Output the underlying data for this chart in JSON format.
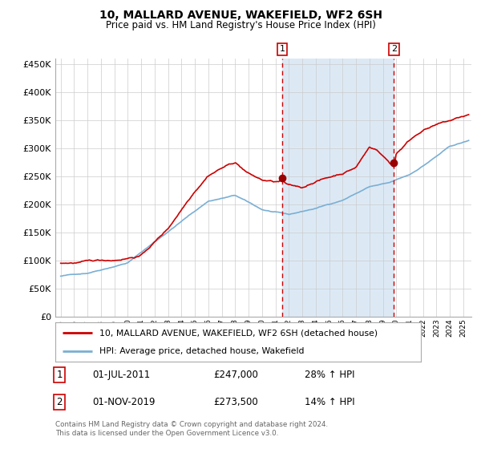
{
  "title": "10, MALLARD AVENUE, WAKEFIELD, WF2 6SH",
  "subtitle": "Price paid vs. HM Land Registry's House Price Index (HPI)",
  "ylim": [
    0,
    460000
  ],
  "yticks": [
    0,
    50000,
    100000,
    150000,
    200000,
    250000,
    300000,
    350000,
    400000,
    450000
  ],
  "xlim_start": 1994.6,
  "xlim_end": 2025.6,
  "marker1_x": 2011.5,
  "marker1_y": 247000,
  "marker1_label": "1",
  "marker1_date": "01-JUL-2011",
  "marker1_price": "£247,000",
  "marker1_hpi": "28% ↑ HPI",
  "marker2_x": 2019.83,
  "marker2_y": 273500,
  "marker2_label": "2",
  "marker2_date": "01-NOV-2019",
  "marker2_price": "£273,500",
  "marker2_hpi": "14% ↑ HPI",
  "shade_color": "#dce9f5",
  "red_line_color": "#cc0000",
  "blue_line_color": "#7aafd4",
  "dashed_line_color": "#cc0000",
  "grid_color": "#cccccc",
  "bg_color": "#ffffff",
  "footnote": "Contains HM Land Registry data © Crown copyright and database right 2024.\nThis data is licensed under the Open Government Licence v3.0.",
  "legend_label_red": "10, MALLARD AVENUE, WAKEFIELD, WF2 6SH (detached house)",
  "legend_label_blue": "HPI: Average price, detached house, Wakefield"
}
